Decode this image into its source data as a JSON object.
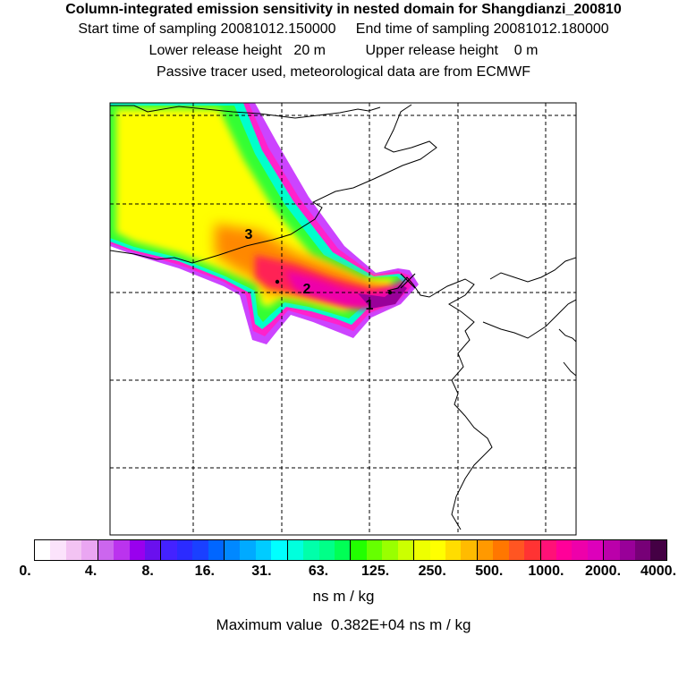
{
  "header": {
    "title": "Column-integrated emission sensitivity in nested domain for Shangdianzi_200810",
    "line2": "Start time of sampling 20081012.150000     End time of sampling 20081012.180000",
    "line3": "Lower release height   20 m          Upper release height    0 m",
    "line4": "Passive tracer used, meteorological data are from ECMWF"
  },
  "map": {
    "cluster_labels": [
      "1",
      "2",
      "3"
    ],
    "release_site_icon": "x-marker-icon"
  },
  "legend": {
    "colors": [
      "#ffffff",
      "#fbe3fb",
      "#f3c3f3",
      "#eaa6f2",
      "#cc66ee",
      "#bb33ee",
      "#9900ee",
      "#6a10ee",
      "#4422ff",
      "#2b2bff",
      "#1a40ff",
      "#0066ff",
      "#0088ff",
      "#00aaff",
      "#00ccff",
      "#00ffff",
      "#00ffdd",
      "#00ffaa",
      "#00ff88",
      "#00ff55",
      "#22ff00",
      "#66ff00",
      "#99ff00",
      "#ccff00",
      "#eeff00",
      "#ffff00",
      "#ffdd00",
      "#ffbb00",
      "#ff9900",
      "#ff7700",
      "#ff5522",
      "#ff3333",
      "#ff1177",
      "#ff0099",
      "#ee00aa",
      "#dd00bb",
      "#bb00aa",
      "#990099",
      "#770077",
      "#440044"
    ],
    "tick_labels": [
      "0.",
      "4.",
      "8.",
      "16.",
      "31.",
      "63.",
      "125.",
      "250.",
      "500.",
      "1000.",
      "2000.",
      "4000."
    ],
    "units": "ns m / kg",
    "max_value": "Maximum value  0.382E+04 ns m / kg"
  }
}
